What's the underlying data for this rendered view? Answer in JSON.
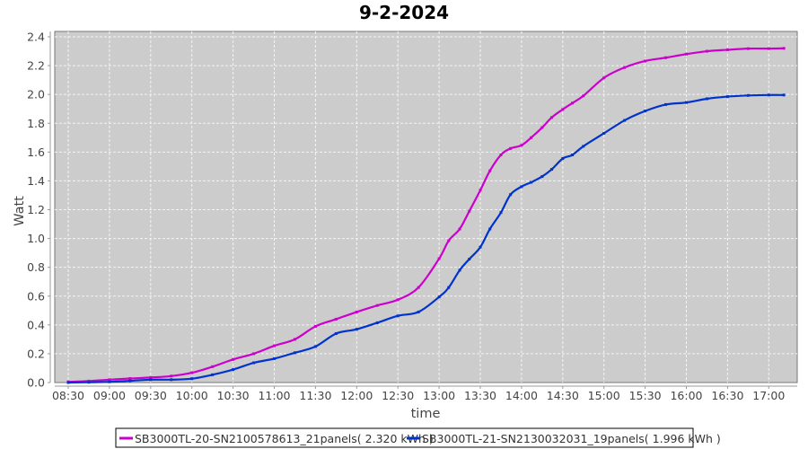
{
  "chart_data": {
    "type": "line",
    "title": "9-2-2024",
    "xlabel": "time",
    "ylabel": "Watt",
    "ylim": [
      0,
      2.4
    ],
    "yticks": [
      "0.0",
      "0.2",
      "0.4",
      "0.6",
      "0.8",
      "1.0",
      "1.2",
      "1.4",
      "1.6",
      "1.8",
      "2.0",
      "2.2",
      "2.4"
    ],
    "xticks": [
      "08:30",
      "09:00",
      "09:30",
      "10:00",
      "10:30",
      "11:00",
      "11:30",
      "12:00",
      "12:30",
      "13:00",
      "13:30",
      "14:00",
      "14:30",
      "15:00",
      "15:30",
      "16:00",
      "16:30",
      "17:00"
    ],
    "grid": true,
    "legend_position": "bottom",
    "background": "#cccccc",
    "x": [
      "08:30",
      "08:45",
      "09:00",
      "09:15",
      "09:30",
      "09:45",
      "10:00",
      "10:15",
      "10:30",
      "10:45",
      "11:00",
      "11:15",
      "11:30",
      "11:45",
      "12:00",
      "12:15",
      "12:30",
      "12:45",
      "13:00",
      "13:07",
      "13:15",
      "13:22",
      "13:30",
      "13:37",
      "13:45",
      "13:52",
      "14:00",
      "14:07",
      "14:15",
      "14:22",
      "14:30",
      "14:37",
      "14:45",
      "15:00",
      "15:15",
      "15:30",
      "15:45",
      "16:00",
      "16:15",
      "16:30",
      "16:45",
      "17:00",
      "17:11"
    ],
    "series": [
      {
        "name": "SB3000TL-20-SN2100578613_21panels( 2.320 kWh )",
        "color": "#cc00cc",
        "values": [
          0.005,
          0.01,
          0.02,
          0.028,
          0.035,
          0.045,
          0.068,
          0.11,
          0.16,
          0.2,
          0.255,
          0.3,
          0.39,
          0.44,
          0.49,
          0.535,
          0.575,
          0.66,
          0.86,
          0.985,
          1.066,
          1.19,
          1.335,
          1.47,
          1.58,
          1.625,
          1.647,
          1.7,
          1.77,
          1.84,
          1.896,
          1.94,
          1.99,
          2.115,
          2.187,
          2.232,
          2.255,
          2.28,
          2.3,
          2.31,
          2.318,
          2.318,
          2.32
        ]
      },
      {
        "name": "SB3000TL-21-SN2130032031_19panels( 1.996 kWh )",
        "color": "#0033cc",
        "values": [
          0.0,
          0.002,
          0.005,
          0.012,
          0.02,
          0.02,
          0.027,
          0.054,
          0.09,
          0.137,
          0.166,
          0.207,
          0.25,
          0.34,
          0.37,
          0.415,
          0.463,
          0.49,
          0.594,
          0.66,
          0.78,
          0.857,
          0.94,
          1.066,
          1.18,
          1.305,
          1.36,
          1.39,
          1.43,
          1.48,
          1.555,
          1.58,
          1.64,
          1.73,
          1.82,
          1.885,
          1.93,
          1.944,
          1.97,
          1.985,
          1.993,
          1.996,
          1.996
        ]
      }
    ]
  }
}
